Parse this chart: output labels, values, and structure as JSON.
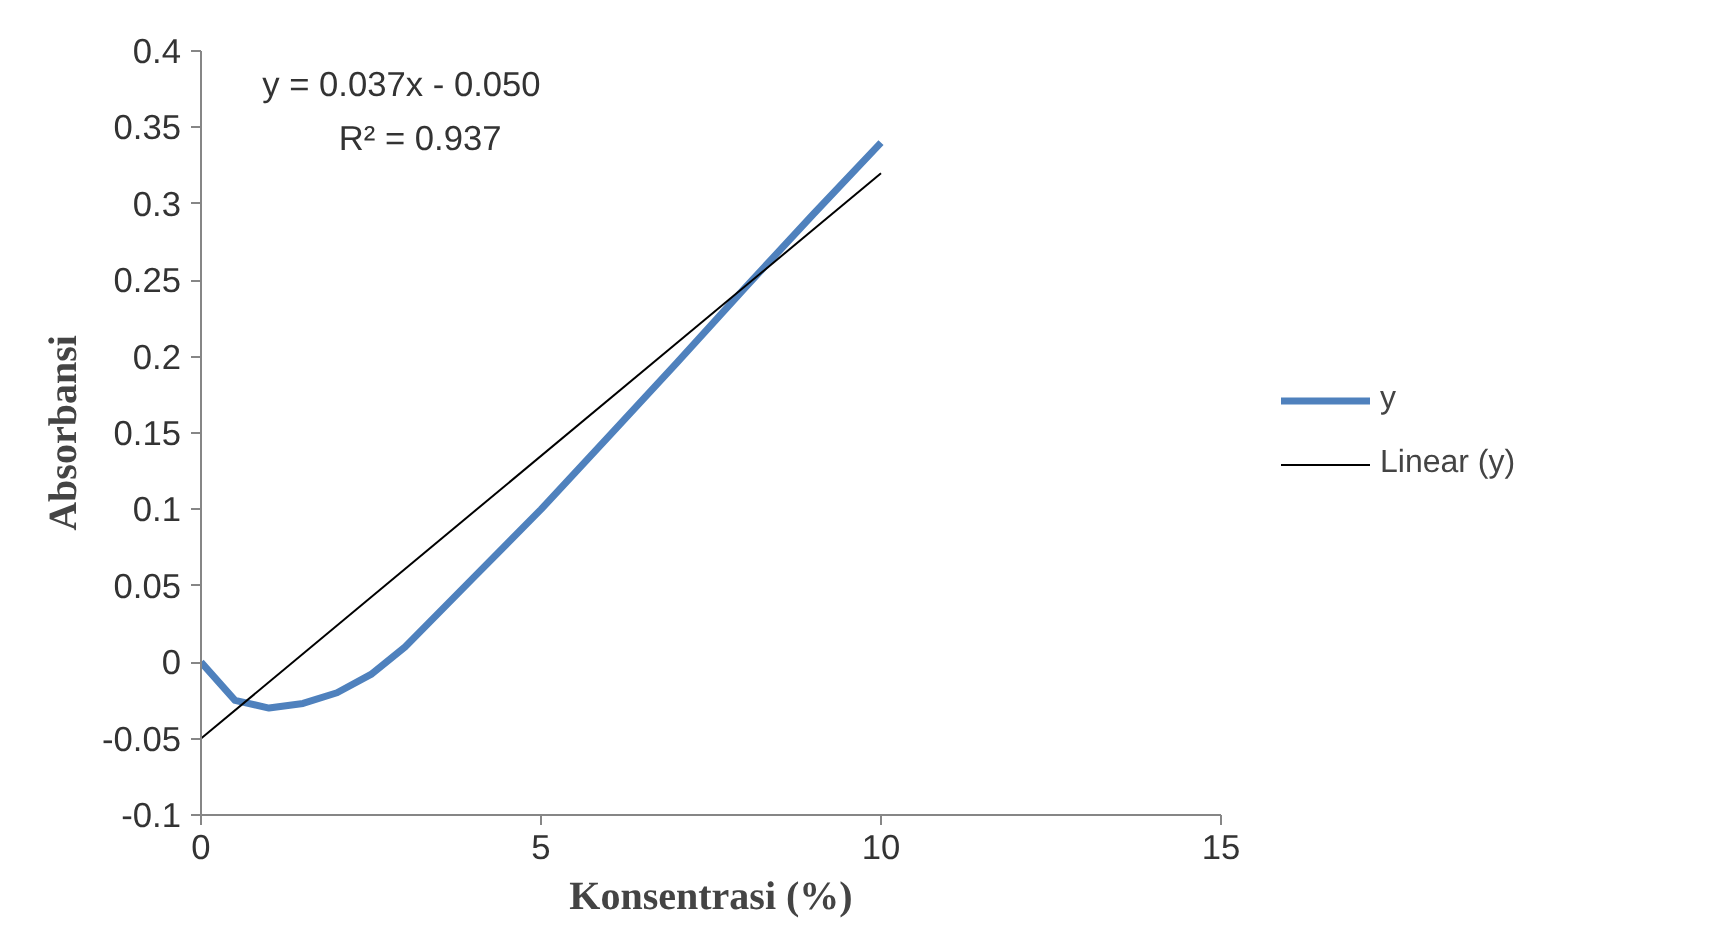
{
  "chart_data": {
    "type": "line",
    "xlabel": "Konsentrasi (%)",
    "ylabel": "Absorbansi",
    "xlim": [
      0,
      15
    ],
    "xticks": [
      0,
      5,
      10,
      15
    ],
    "ylim": [
      -0.1,
      0.4
    ],
    "yticks": [
      -0.1,
      -0.05,
      0,
      0.05,
      0.1,
      0.15,
      0.2,
      0.25,
      0.3,
      0.35,
      0.4
    ],
    "series": [
      {
        "name": "y",
        "color": "#4f81bd",
        "x": [
          0,
          0.5,
          1,
          1.5,
          2,
          2.5,
          3,
          4,
          5,
          6,
          7,
          8,
          9,
          10
        ],
        "values": [
          0,
          -0.025,
          -0.03,
          -0.027,
          -0.02,
          -0.008,
          0.01,
          0.055,
          0.1,
          0.148,
          0.196,
          0.245,
          0.293,
          0.34
        ]
      },
      {
        "name": "Linear (y)",
        "color": "#000000",
        "x": [
          0,
          10
        ],
        "values": [
          -0.05,
          0.32
        ]
      }
    ],
    "annotations": [
      "y = 0.037x - 0.050",
      "R² = 0.937"
    ],
    "grid": false,
    "legend": "right",
    "marker": "none",
    "line_style": "solid"
  }
}
